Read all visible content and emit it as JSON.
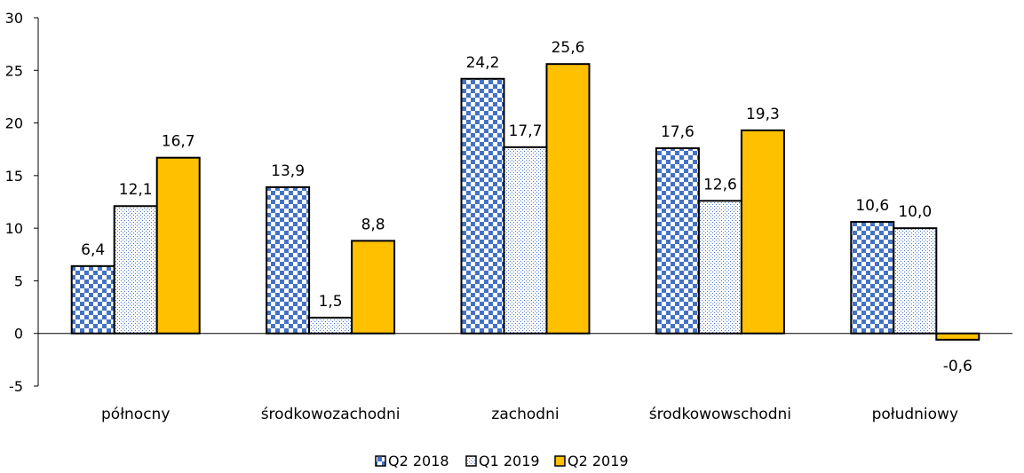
{
  "chart_data": {
    "type": "bar",
    "categories": [
      "północny",
      "środkowozachodni",
      "zachodni",
      "środkowowschodni",
      "południowy"
    ],
    "series": [
      {
        "name": "Q2 2018",
        "values": [
          6.4,
          13.9,
          24.2,
          17.6,
          10.6
        ],
        "labels": [
          "6,4",
          "13,9",
          "24,2",
          "17,6",
          "10,6"
        ],
        "color": "#4472c4",
        "pattern": "checker"
      },
      {
        "name": "Q1 2019",
        "values": [
          12.1,
          1.5,
          17.7,
          12.6,
          10.0
        ],
        "labels": [
          "12,1",
          "1,5",
          "17,7",
          "12,6",
          "10,0"
        ],
        "color": "#4472c4",
        "pattern": "dots"
      },
      {
        "name": "Q2 2019",
        "values": [
          16.7,
          8.8,
          25.6,
          19.3,
          -0.6
        ],
        "labels": [
          "16,7",
          "8,8",
          "25,6",
          "19,3",
          "-0,6"
        ],
        "color": "#ffc000",
        "pattern": "solid"
      }
    ],
    "y_ticks": [
      "-5",
      "0",
      "5",
      "10",
      "15",
      "20",
      "25",
      "30"
    ],
    "ylim": [
      -5,
      30
    ],
    "legend_position": "bottom",
    "grid": false
  }
}
